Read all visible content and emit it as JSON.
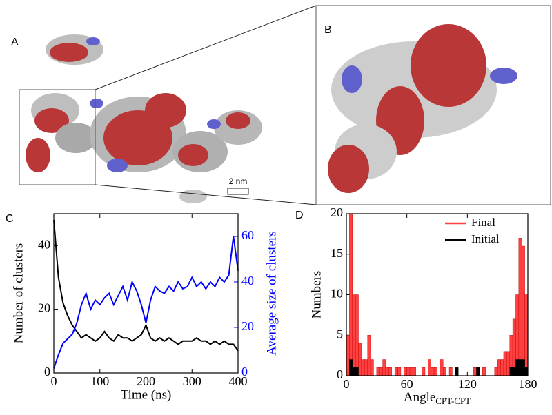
{
  "panels": {
    "a": "A",
    "b": "B",
    "c": "C",
    "d": "D",
    "scale_bar": "2 nm"
  },
  "chart_data": [
    {
      "type": "line",
      "xlabel": "Time (ns)",
      "ylabel": "Number of clusters",
      "y2label": "Average size of clusters",
      "x": [
        0,
        10,
        20,
        30,
        40,
        50,
        60,
        70,
        80,
        90,
        100,
        110,
        120,
        130,
        140,
        150,
        160,
        170,
        180,
        190,
        200,
        210,
        220,
        230,
        240,
        250,
        260,
        270,
        280,
        290,
        300,
        310,
        320,
        330,
        340,
        350,
        360,
        370,
        380,
        390,
        400
      ],
      "xlim": [
        0,
        400
      ],
      "xticks": [
        0,
        100,
        200,
        300,
        400
      ],
      "ylim": [
        0,
        50
      ],
      "yticks": [
        0,
        20,
        40
      ],
      "y2lim": [
        0,
        70
      ],
      "y2ticks": [
        0,
        20,
        40,
        60
      ],
      "y2color": "#0000ff",
      "series": [
        {
          "name": "Number of clusters",
          "color": "#000000",
          "values": [
            48,
            30,
            22,
            18,
            15,
            13,
            11,
            12,
            11,
            10,
            11,
            13,
            11,
            10,
            12,
            11,
            11,
            10,
            11,
            12,
            15,
            11,
            10,
            11,
            10,
            11,
            10,
            9,
            10,
            10,
            10,
            11,
            10,
            10,
            9,
            10,
            9,
            10,
            9,
            9,
            7
          ]
        },
        {
          "name": "Average size of clusters",
          "color": "#0000ff",
          "axis": "y2",
          "values": [
            2,
            8,
            13,
            15,
            17,
            22,
            30,
            35,
            28,
            32,
            30,
            33,
            35,
            30,
            34,
            38,
            32,
            40,
            36,
            30,
            22,
            32,
            38,
            36,
            35,
            38,
            36,
            40,
            37,
            38,
            42,
            38,
            40,
            37,
            40,
            38,
            42,
            40,
            43,
            60,
            45
          ]
        }
      ]
    },
    {
      "type": "histogram",
      "xlabel": "Angle",
      "xlabel_subscript": "CPT-CPT",
      "ylabel": "Numbers",
      "bins": [
        0,
        3,
        6,
        9,
        12,
        15,
        18,
        21,
        24,
        27,
        30,
        33,
        36,
        39,
        42,
        45,
        48,
        51,
        54,
        57,
        60,
        63,
        66,
        69,
        72,
        75,
        78,
        81,
        84,
        87,
        90,
        93,
        96,
        99,
        102,
        105,
        108,
        111,
        114,
        117,
        120,
        123,
        126,
        129,
        132,
        135,
        138,
        141,
        144,
        147,
        150,
        153,
        156,
        159,
        162,
        165,
        168,
        171,
        174,
        177,
        180
      ],
      "xlim": [
        0,
        180
      ],
      "xticks": [
        0,
        60,
        120,
        180
      ],
      "ylim": [
        0,
        20
      ],
      "yticks": [
        0,
        5,
        10,
        15,
        20
      ],
      "legend": "upper right",
      "series": [
        {
          "name": "Final",
          "color": "#ff4040",
          "values": [
            5,
            20,
            10,
            10,
            4,
            2,
            2,
            5,
            2,
            0,
            1,
            1,
            2,
            1,
            1,
            0,
            1,
            1,
            0,
            1,
            1,
            1,
            1,
            0,
            0,
            1,
            0,
            2,
            1,
            1,
            0,
            2,
            1,
            0,
            1,
            0,
            0,
            0,
            0,
            0,
            0,
            0,
            1,
            1,
            0,
            1,
            0,
            0,
            0,
            1,
            2,
            2,
            3,
            3,
            5,
            7,
            10,
            17,
            16,
            10
          ]
        },
        {
          "name": "Initial",
          "color": "#000000",
          "values": [
            0,
            2,
            1,
            1,
            0,
            0,
            0,
            0,
            0,
            0,
            0,
            0,
            0,
            0,
            0,
            0,
            0,
            0,
            0,
            0,
            0,
            0,
            0,
            0,
            0,
            0,
            0,
            0,
            0,
            0,
            0,
            0,
            0,
            0,
            0,
            0,
            1,
            0,
            0,
            0,
            0,
            0,
            0,
            1,
            0,
            0,
            0,
            0,
            0,
            0,
            0,
            0,
            0,
            0,
            1,
            1,
            2,
            2,
            2,
            1
          ]
        }
      ]
    }
  ]
}
